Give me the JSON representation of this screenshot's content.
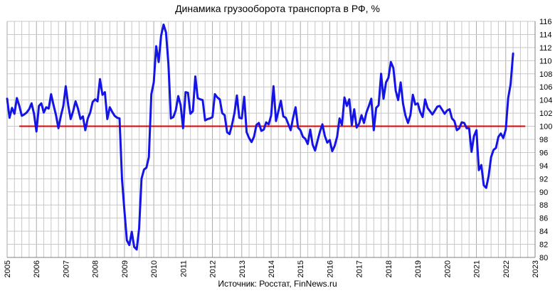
{
  "chart_data": {
    "type": "line",
    "title": "Динамика грузооборота транспорта в РФ, %",
    "source": "Источник: Росстат, FinNews.ru",
    "xlabel": "",
    "ylabel": "",
    "x_tick_labels": [
      "2005",
      "2006",
      "2007",
      "2008",
      "2009",
      "2010",
      "2011",
      "2012",
      "2013",
      "2014",
      "2015",
      "2016",
      "2017",
      "2018",
      "2019",
      "2020",
      "2021",
      "2022",
      "2023"
    ],
    "y_tick_labels": [
      "80",
      "82",
      "84",
      "86",
      "88",
      "90",
      "92",
      "94",
      "96",
      "98",
      "100",
      "102",
      "104",
      "106",
      "108",
      "110",
      "112",
      "114",
      "116"
    ],
    "xlim": [
      "2005-01",
      "2023-01"
    ],
    "ylim": [
      80,
      116
    ],
    "grid": true,
    "legend": "none",
    "colors": {
      "series": "#1414e6",
      "reference": "#e60000",
      "grid": "#c8c8c8",
      "axis": "#808080"
    },
    "series": [
      {
        "x_start": "2005-01",
        "frequency": "monthly",
        "values": [
          104.2,
          101.3,
          102.8,
          101.9,
          104.3,
          103.1,
          101.6,
          101.8,
          102.1,
          102.6,
          103.5,
          101.9,
          99.2,
          103.1,
          103.5,
          102.1,
          102.9,
          102.7,
          104.9,
          103.2,
          101.7,
          99.7,
          101.6,
          103.1,
          106.1,
          103.2,
          101.1,
          102.3,
          103.8,
          102.7,
          101.1,
          101.5,
          99.4,
          101.2,
          102.1,
          103.7,
          104.1,
          103.8,
          107.2,
          104.8,
          105.2,
          101.1,
          102.9,
          102.2,
          101.6,
          101.3,
          101.2,
          91.9,
          87.1,
          82.6,
          81.9,
          83.9,
          81.6,
          81.2,
          84.4,
          92.0,
          93.4,
          93.7,
          95.3,
          104.9,
          106.7,
          112.2,
          109.8,
          113.8,
          115.5,
          114.3,
          109.5,
          101.2,
          101.4,
          102.4,
          104.6,
          103.2,
          99.7,
          105.2,
          105.1,
          101.9,
          102.3,
          107.6,
          104.3,
          104.1,
          104.0,
          100.9,
          101.1,
          101.2,
          101.4,
          104.9,
          104.4,
          104.1,
          102.0,
          101.7,
          99.1,
          98.8,
          100.2,
          102.0,
          104.7,
          101.3,
          101.2,
          104.5,
          99.1,
          98.2,
          97.6,
          98.4,
          100.2,
          100.5,
          99.3,
          99.5,
          100.6,
          100.3,
          101.6,
          106.1,
          100.8,
          102.3,
          103.9,
          101.5,
          101.3,
          100.4,
          99.4,
          101.3,
          102.9,
          99.8,
          99.4,
          98.4,
          98.1,
          97.3,
          99.5,
          97.2,
          96.3,
          97.8,
          99.2,
          100.3,
          98.5,
          97.5,
          97.9,
          96.2,
          97.0,
          98.4,
          101.2,
          100.2,
          104.4,
          103.1,
          104.1,
          100.2,
          102.6,
          99.8,
          100.4,
          101.7,
          100.5,
          102.1,
          103.1,
          104.2,
          99.4,
          102.8,
          103.2,
          108.0,
          104.2,
          106.7,
          107.4,
          109.8,
          108.9,
          105.4,
          104.0,
          106.7,
          103.4,
          101.6,
          100.5,
          101.7,
          104.8,
          103.3,
          103.5,
          102.2,
          101.4,
          104.1,
          102.8,
          102.3,
          101.8,
          102.4,
          103.0,
          103.1,
          102.5,
          101.9,
          102.4,
          102.6,
          101.2,
          100.8,
          99.4,
          99.7,
          100.6,
          100.5,
          99.7,
          99.7,
          96.1,
          98.5,
          99.4,
          93.3,
          94.1,
          91.0,
          90.6,
          92.4,
          95.3,
          96.4,
          96.7,
          98.4,
          98.9,
          98.2,
          99.5,
          104.3,
          106.4,
          111.1
        ]
      }
    ],
    "reference_line": {
      "y": 100,
      "from": "2005-06",
      "to": "2022-09"
    }
  }
}
